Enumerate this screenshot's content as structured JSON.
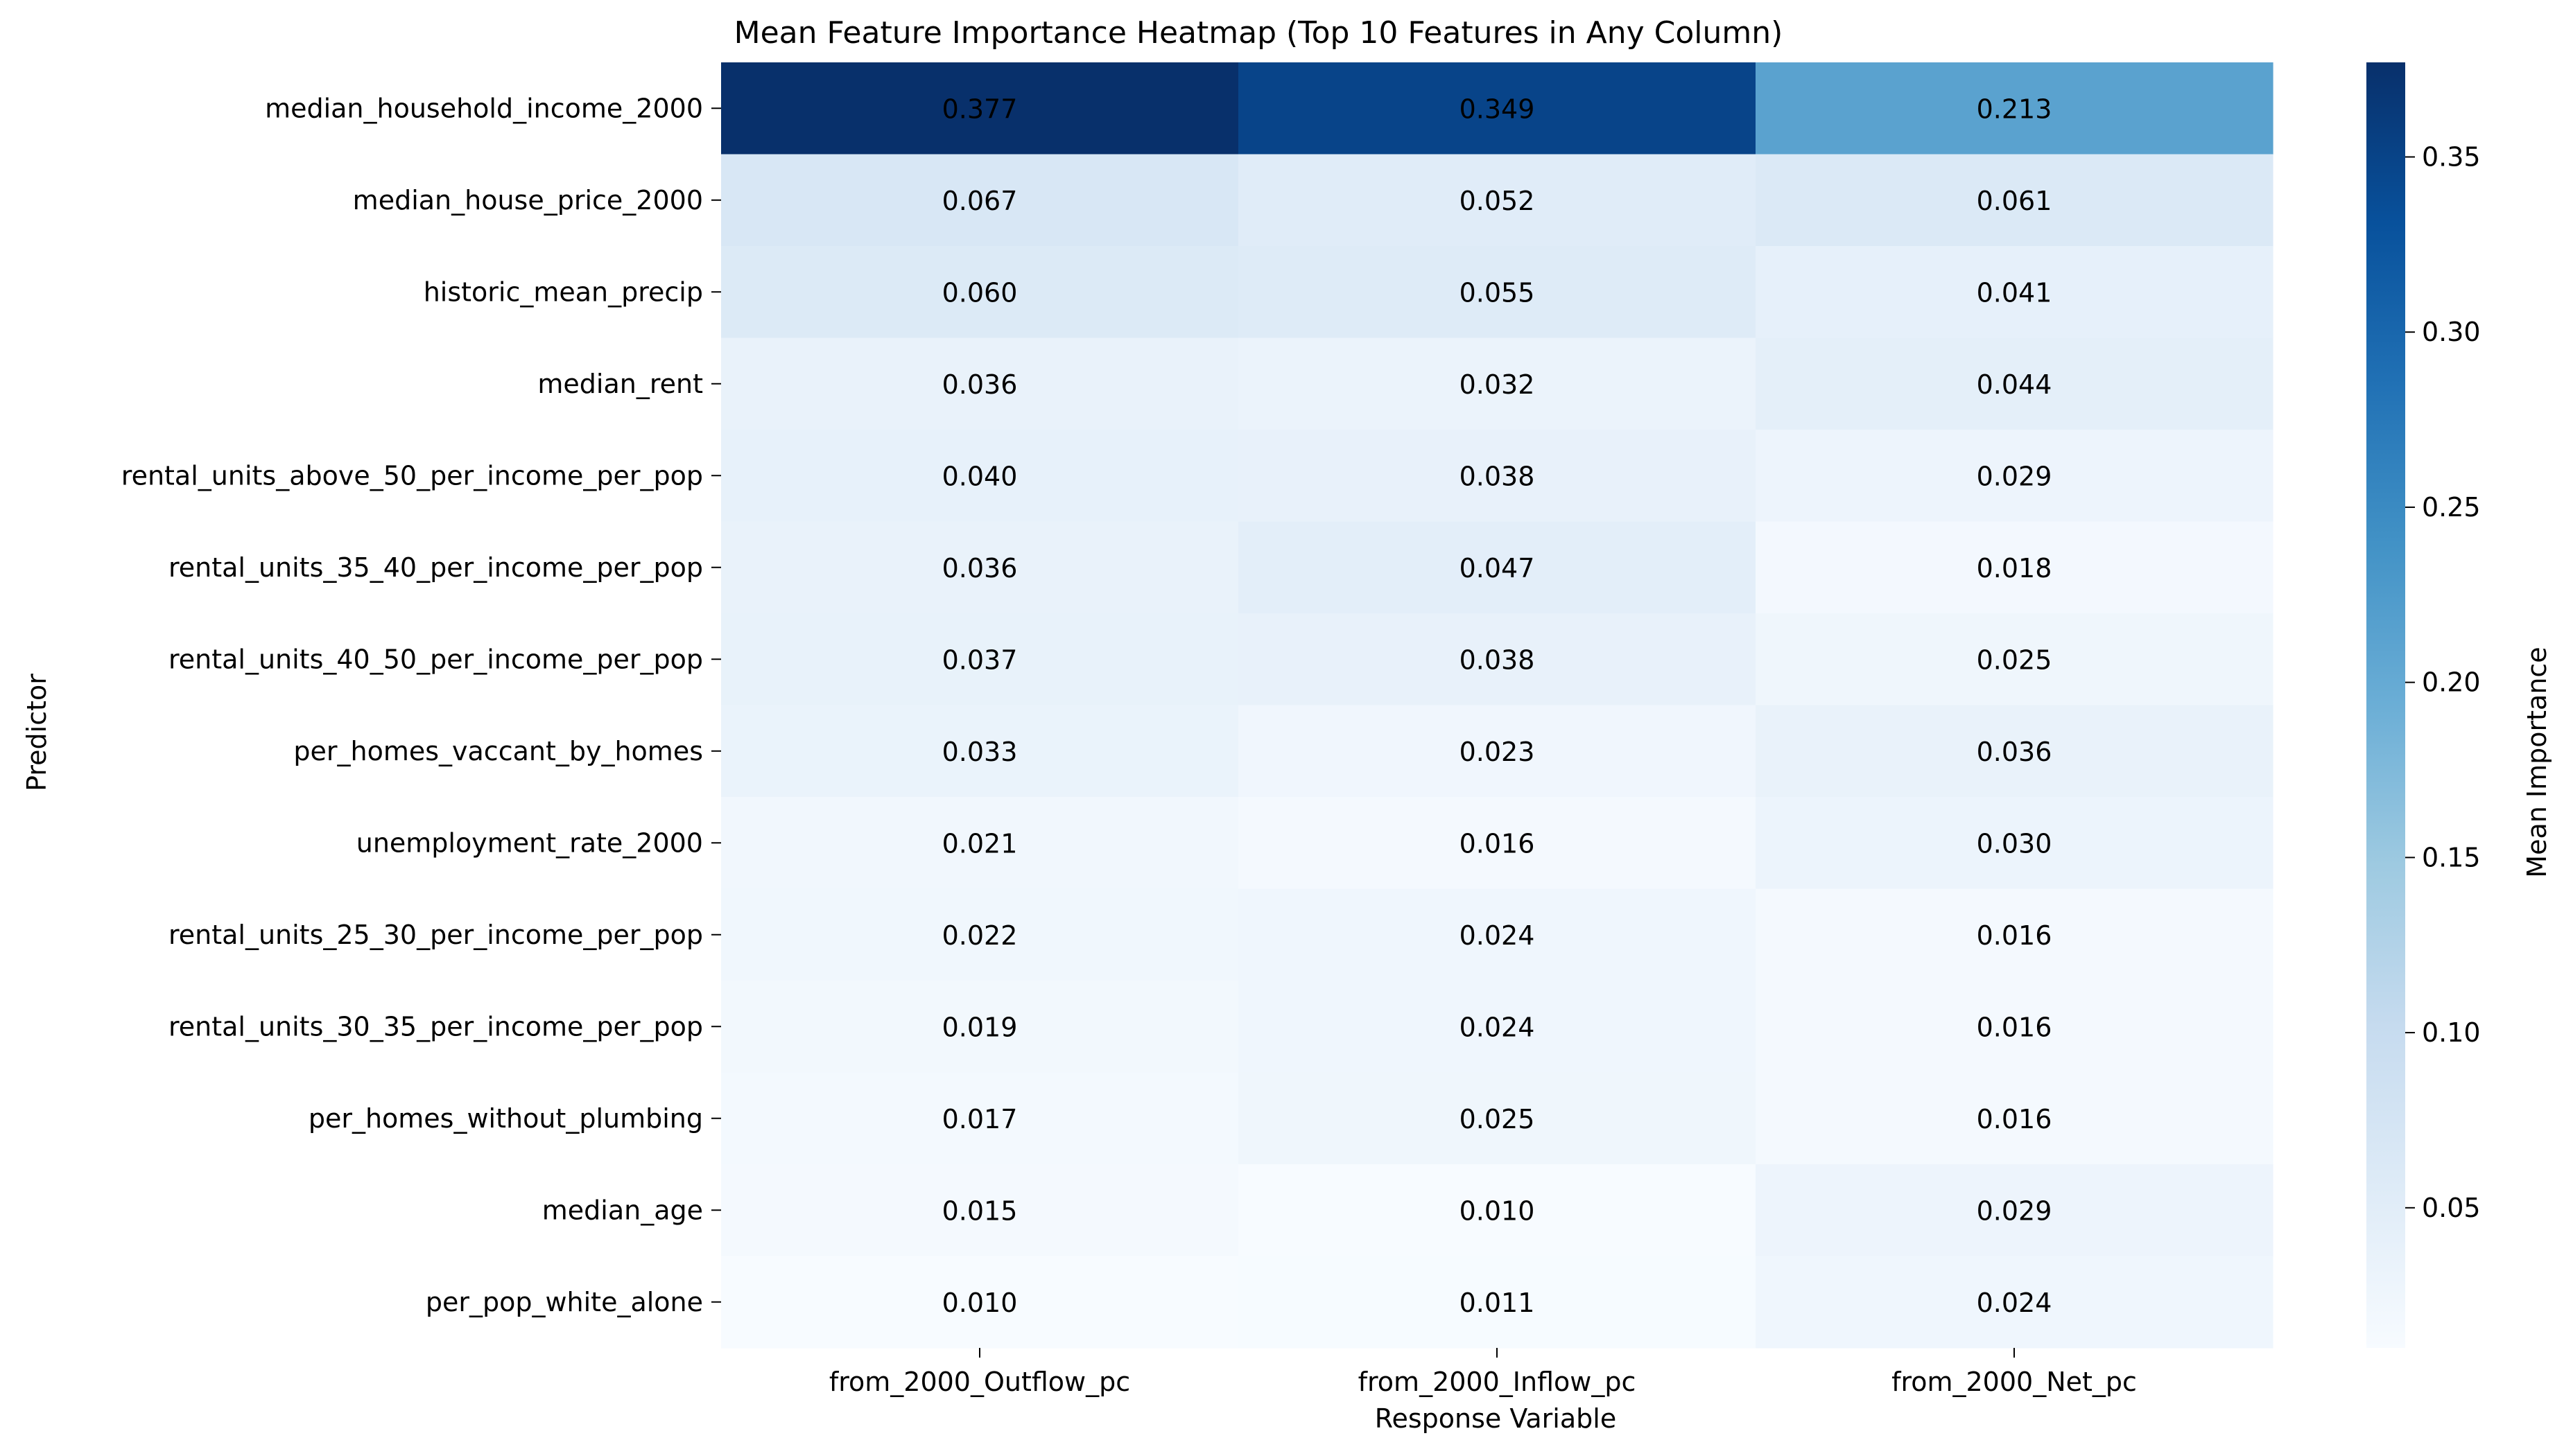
{
  "chart_data": {
    "type": "heatmap",
    "title": "Mean Feature Importance Heatmap (Top 10 Features in Any Column)",
    "xlabel": "Response Variable",
    "ylabel": "Predictor",
    "x_categories": [
      "from_2000_Outflow_pc",
      "from_2000_Inflow_pc",
      "from_2000_Net_pc"
    ],
    "y_categories": [
      "median_household_income_2000",
      "median_house_price_2000",
      "historic_mean_precip",
      "median_rent",
      "rental_units_above_50_per_income_per_pop",
      "rental_units_35_40_per_income_per_pop",
      "rental_units_40_50_per_income_per_pop",
      "per_homes_vaccant_by_homes",
      "unemployment_rate_2000",
      "rental_units_25_30_per_income_per_pop",
      "rental_units_30_35_per_income_per_pop",
      "per_homes_without_plumbing",
      "median_age",
      "per_pop_white_alone"
    ],
    "values": [
      [
        0.377,
        0.349,
        0.213
      ],
      [
        0.067,
        0.052,
        0.061
      ],
      [
        0.06,
        0.055,
        0.041
      ],
      [
        0.036,
        0.032,
        0.044
      ],
      [
        0.04,
        0.038,
        0.029
      ],
      [
        0.036,
        0.047,
        0.018
      ],
      [
        0.037,
        0.038,
        0.025
      ],
      [
        0.033,
        0.023,
        0.036
      ],
      [
        0.021,
        0.016,
        0.03
      ],
      [
        0.022,
        0.024,
        0.016
      ],
      [
        0.019,
        0.024,
        0.016
      ],
      [
        0.017,
        0.025,
        0.016
      ],
      [
        0.015,
        0.01,
        0.029
      ],
      [
        0.01,
        0.011,
        0.024
      ]
    ],
    "colorbar": {
      "label": "Mean Importance",
      "range": [
        0.01,
        0.377
      ],
      "ticks": [
        0.05,
        0.1,
        0.15,
        0.2,
        0.25,
        0.3,
        0.35
      ],
      "tick_labels": [
        "0.05",
        "0.10",
        "0.15",
        "0.20",
        "0.25",
        "0.30",
        "0.35"
      ]
    },
    "colormap": "Blues",
    "colormap_stops": [
      "#f7fbff",
      "#deebf7",
      "#c6dbef",
      "#9ecae1",
      "#6baed6",
      "#4292c6",
      "#2171b5",
      "#08519c",
      "#08306b"
    ],
    "annotation_colors": {
      "dark_text": "#262626",
      "light_text": "#ffffff"
    },
    "value_format_decimals": 3
  }
}
